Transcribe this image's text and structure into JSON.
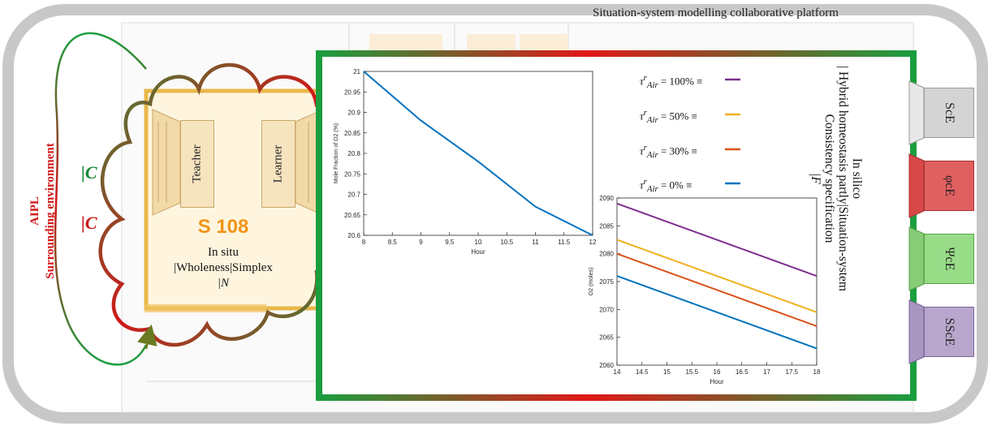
{
  "platform_title": "Situation-system modelling collaborative platform",
  "environment": {
    "name": "AIPL",
    "label": "Surrounding environment",
    "coupling_label_1": "|C",
    "coupling_label_2": "|C"
  },
  "classroom": {
    "teacher_label": "Teacher",
    "learner_label": "Learner",
    "room_number": "S 108",
    "insitu_line1": "In situ",
    "insitu_line2": "|Wholeness|Simplex",
    "insitu_line3": "|N"
  },
  "insilico": {
    "line1": "In silico",
    "line2": "| Hybrid homeostasis partly|Situation-system",
    "line3": "Consistency specification",
    "line4": "|F"
  },
  "legend": [
    {
      "symbol": "τ",
      "sup": "r",
      "sub": "Air",
      "value": "= 100% ≡",
      "color": "#7e2f8e"
    },
    {
      "symbol": "τ",
      "sup": "r",
      "sub": "Air",
      "value": "= 50% ≡",
      "color": "#edb120"
    },
    {
      "symbol": "τ",
      "sup": "r",
      "sub": "Air",
      "value": "= 30% ≡",
      "color": "#d95319"
    },
    {
      "symbol": "τ",
      "sup": "r",
      "sub": "Air",
      "value": "= 0% ≡",
      "color": "#0072bd"
    }
  ],
  "tabs": [
    {
      "label": "ScE",
      "color": "#d4d4d4",
      "border": "#9a9a9a"
    },
    {
      "label": "φcE",
      "color": "#e06060",
      "border": "#a83030"
    },
    {
      "label": "ΨcE",
      "color": "#98dc88",
      "border": "#58a048"
    },
    {
      "label": "SScE",
      "color": "#b8a6cc",
      "border": "#7a6498"
    }
  ],
  "chart_data": [
    {
      "type": "line",
      "xlabel": "Hour",
      "ylabel": "Mole Fraction of O2 (%)",
      "xlim": [
        8,
        12
      ],
      "ylim": [
        20.6,
        21
      ],
      "xticks": [
        "8",
        "8.5",
        "9",
        "9.5",
        "10",
        "10.5",
        "11",
        "11.5",
        "12"
      ],
      "yticks": [
        "20.6",
        "20.65",
        "20.7",
        "20.75",
        "20.8",
        "20.85",
        "20.9",
        "20.95",
        "21"
      ],
      "series": [
        {
          "x": [
            8,
            9,
            10,
            11,
            12
          ],
          "y": [
            21.0,
            20.88,
            20.78,
            20.67,
            20.6
          ],
          "color": "#0072bd"
        }
      ]
    },
    {
      "type": "line",
      "xlabel": "Hour",
      "ylabel": "O2 (moles)",
      "xlim": [
        14,
        18
      ],
      "ylim": [
        2060,
        2090
      ],
      "xticks": [
        "14",
        "14.5",
        "15",
        "15.5",
        "16",
        "16.5",
        "17",
        "17.5",
        "18"
      ],
      "yticks": [
        "2060",
        "2065",
        "2070",
        "2075",
        "2080",
        "2085",
        "2090"
      ],
      "series": [
        {
          "x": [
            14,
            18
          ],
          "y": [
            2089,
            2076
          ],
          "color": "#7e2f8e"
        },
        {
          "x": [
            14,
            18
          ],
          "y": [
            2082.5,
            2069.5
          ],
          "color": "#edb120"
        },
        {
          "x": [
            14,
            18
          ],
          "y": [
            2080,
            2067
          ],
          "color": "#d95319"
        },
        {
          "x": [
            14,
            18
          ],
          "y": [
            2076,
            2063
          ],
          "color": "#0072bd"
        }
      ]
    }
  ]
}
